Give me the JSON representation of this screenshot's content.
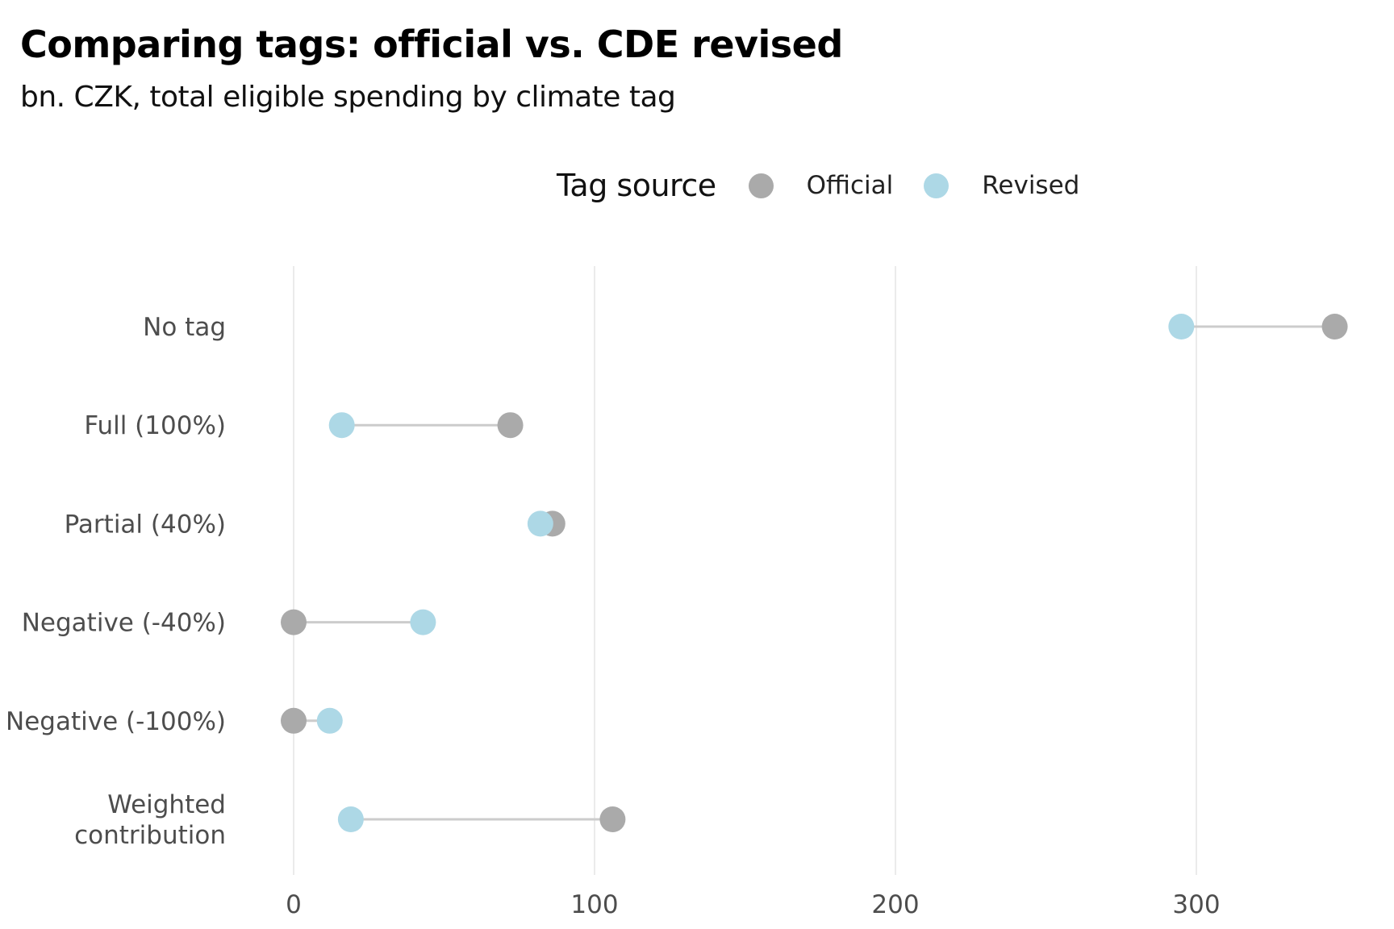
{
  "chart_data": {
    "type": "dot",
    "title": "Comparing tags: official vs. CDE revised",
    "subtitle": "bn. CZK, total eligible spending by climate tag",
    "legend": {
      "title": "Tag source",
      "placement": "top-center",
      "items": [
        {
          "label": "Official",
          "color": "#aaaaaa"
        },
        {
          "label": "Revised",
          "color": "#add8e6"
        }
      ]
    },
    "categories": [
      {
        "id": "no-tag",
        "lines": [
          "No tag"
        ]
      },
      {
        "id": "full-100",
        "lines": [
          "Full (100%)"
        ]
      },
      {
        "id": "partial-40",
        "lines": [
          "Partial (40%)"
        ]
      },
      {
        "id": "negative-40",
        "lines": [
          "Negative (-40%)"
        ]
      },
      {
        "id": "negative-100",
        "lines": [
          "Negative (-100%)"
        ]
      },
      {
        "id": "weighted-contribution",
        "lines": [
          "Weighted",
          "contribution"
        ]
      }
    ],
    "series": [
      {
        "name": "Official",
        "color": "#aaaaaa",
        "values": [
          346,
          72,
          86,
          0,
          0,
          106
        ]
      },
      {
        "name": "Revised",
        "color": "#add8e6",
        "values": [
          295,
          16,
          82,
          43,
          12,
          19
        ]
      }
    ],
    "connector_color": "#cccccc",
    "xlim": [
      -80,
      350
    ],
    "xticks": [
      0,
      100,
      200,
      300
    ],
    "xlabel": "",
    "ylabel": "",
    "grid": {
      "vertical_major": true,
      "horizontal": false,
      "color": "#ebebeb"
    }
  }
}
